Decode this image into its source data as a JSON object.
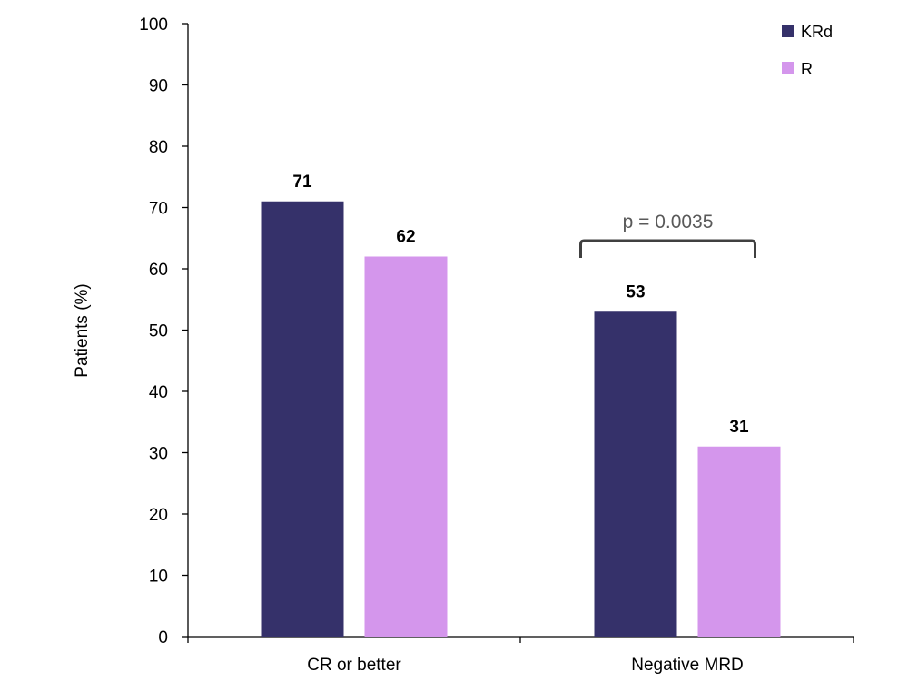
{
  "chart_data": {
    "type": "bar",
    "ylabel": "Patients (%)",
    "xlabel": "",
    "ylim": [
      0,
      100
    ],
    "yticks": [
      0,
      10,
      20,
      30,
      40,
      50,
      60,
      70,
      80,
      90,
      100
    ],
    "grid": false,
    "legend_position": "top-right",
    "categories": [
      "CR or better",
      "Negative MRD"
    ],
    "series": [
      {
        "name": "KRd",
        "color": "#35316a",
        "values": [
          71,
          53
        ]
      },
      {
        "name": "R",
        "color": "#d496ec",
        "values": [
          62,
          31
        ]
      }
    ],
    "annotations": [
      {
        "text": "p = 0.0035",
        "category": "Negative MRD",
        "type": "bracket",
        "color": "#404040"
      }
    ]
  }
}
